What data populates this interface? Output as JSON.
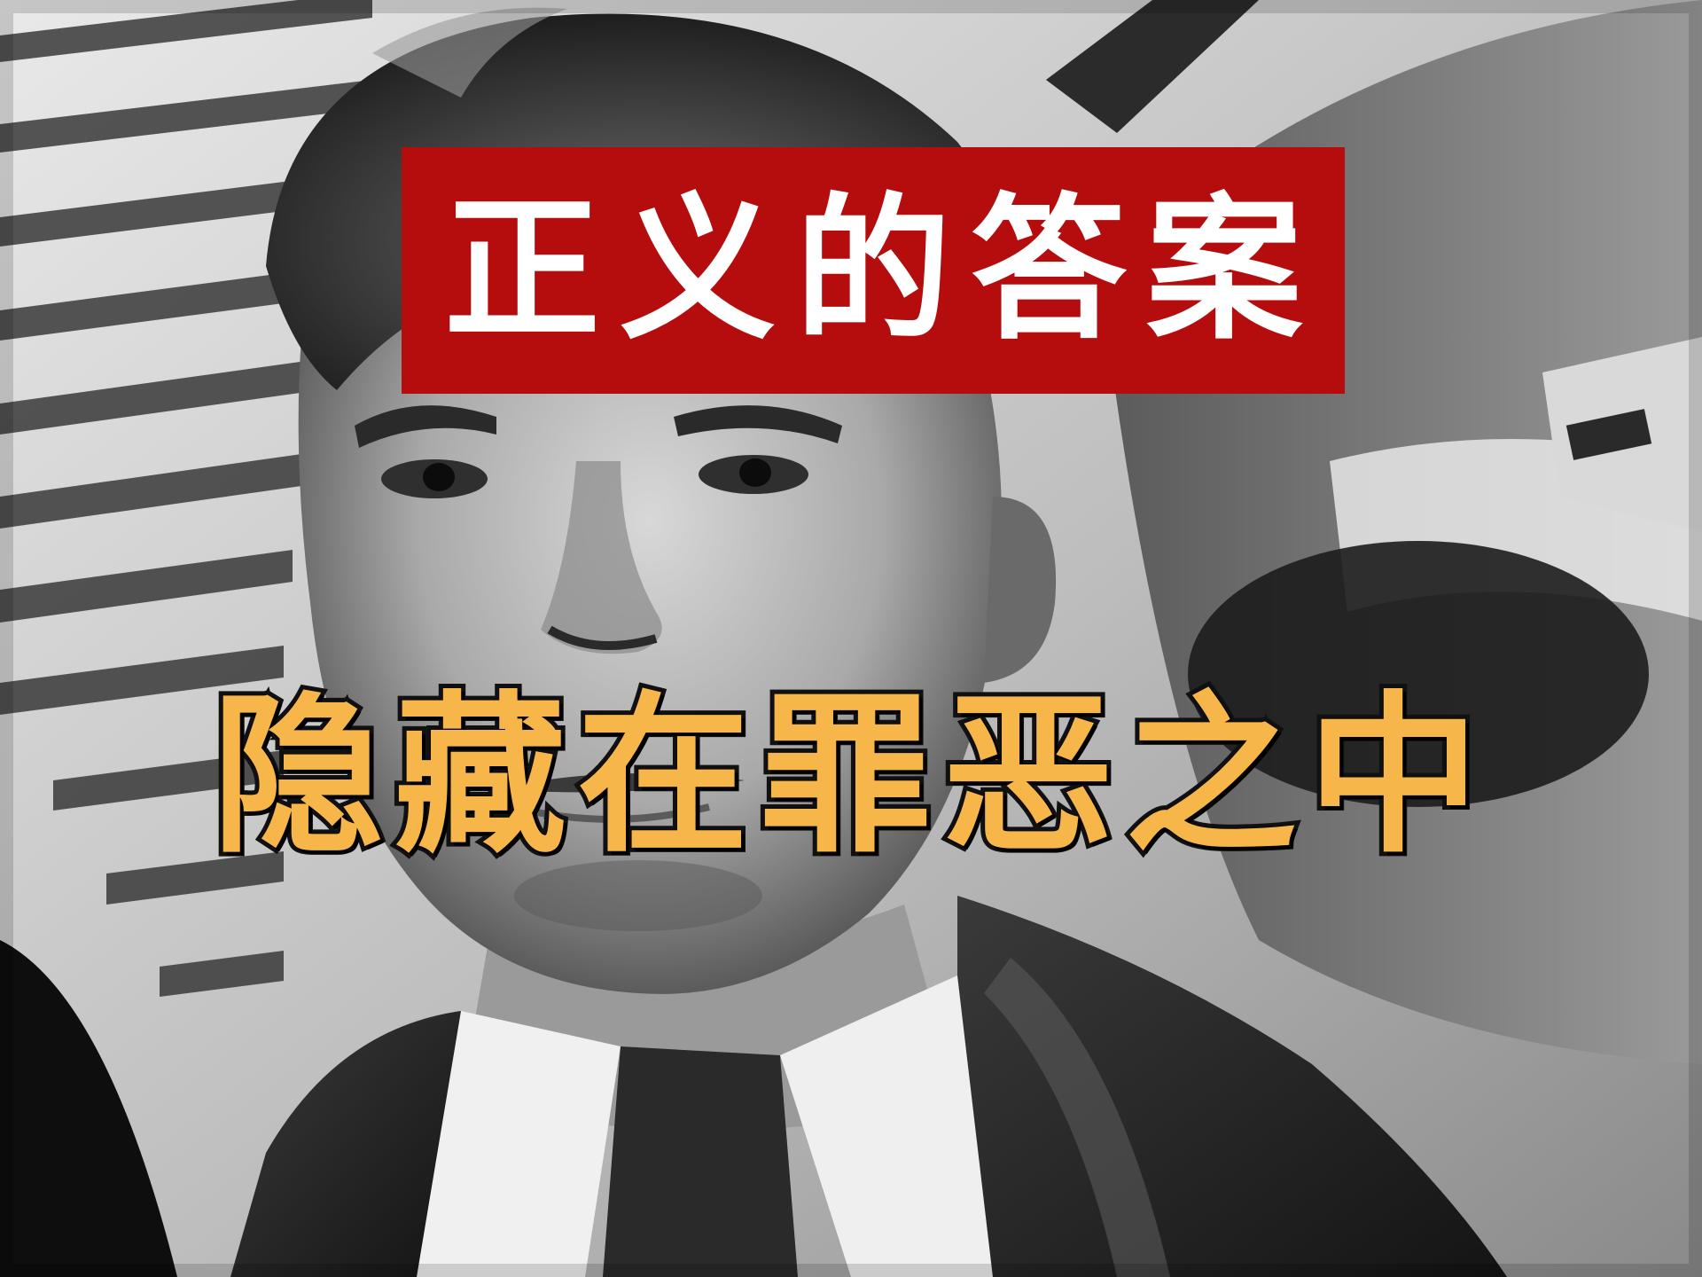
{
  "image": {
    "subject": "black-and-white-portrait",
    "colors": {
      "title_bg": "#b50d0d",
      "title_text": "#ffffff",
      "subtitle_text": "#f6b64a",
      "subtitle_outline": "#111111"
    }
  },
  "title": {
    "text": "正义的答案"
  },
  "subtitle": {
    "text": "隐藏在罪恶之中"
  }
}
